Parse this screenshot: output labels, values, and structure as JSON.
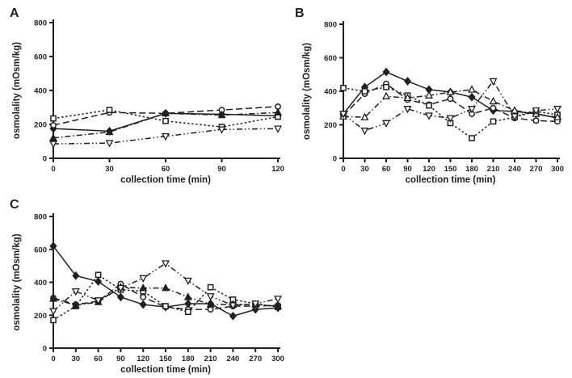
{
  "figure": {
    "background": "#ffffff",
    "ink_color": "#231f20"
  },
  "chart_data": [
    {
      "panel": "A",
      "type": "line",
      "xlabel": "collection time (min)",
      "ylabel": "osmolality (mOsm/kg)",
      "x": [
        0,
        30,
        60,
        90,
        120
      ],
      "xlim": [
        0,
        120
      ],
      "ylim": [
        0,
        800
      ],
      "yticks": [
        0,
        200,
        400,
        600,
        800
      ],
      "grid": false,
      "legend": "none",
      "series": [
        {
          "name": "filled-diamond-solid",
          "marker": "diamond",
          "fill": "black",
          "dash": "",
          "values": [
            175,
            160,
            265,
            260,
            250
          ]
        },
        {
          "name": "open-circle-dashed",
          "marker": "circle",
          "fill": "open",
          "dash": "8,4",
          "values": [
            195,
            270,
            265,
            285,
            305
          ]
        },
        {
          "name": "open-square-dotted",
          "marker": "square",
          "fill": "open",
          "dash": "2.5,2.6",
          "values": [
            235,
            285,
            220,
            185,
            245
          ]
        },
        {
          "name": "filled-triangle-dashdot",
          "marker": "triangle-up",
          "fill": "black",
          "dash": "7,3,1.5,3",
          "values": [
            120,
            155,
            265,
            255,
            270
          ]
        },
        {
          "name": "open-invtriangle-dashdotdot",
          "marker": "triangle-down",
          "fill": "open",
          "dash": "7,3,1.5,3,1.5,3",
          "values": [
            85,
            90,
            130,
            170,
            175
          ]
        }
      ]
    },
    {
      "panel": "B",
      "type": "line",
      "xlabel": "collection time (min)",
      "ylabel": "osmolality (mOsm/kg)",
      "x": [
        0,
        30,
        60,
        90,
        120,
        150,
        180,
        210,
        240,
        270,
        300
      ],
      "xlim": [
        0,
        300
      ],
      "ylim": [
        0,
        800
      ],
      "yticks": [
        0,
        200,
        400,
        600,
        800
      ],
      "grid": false,
      "legend": "none",
      "series": [
        {
          "name": "filled-diamond-solid",
          "marker": "diamond",
          "fill": "black",
          "dash": "",
          "values": [
            265,
            425,
            515,
            460,
            410,
            395,
            365,
            285,
            280,
            265,
            240
          ]
        },
        {
          "name": "open-circle-dashed",
          "marker": "circle",
          "fill": "open",
          "dash": "8,4",
          "values": [
            255,
            385,
            445,
            350,
            320,
            355,
            265,
            300,
            240,
            225,
            220
          ]
        },
        {
          "name": "open-square-dotted",
          "marker": "square",
          "fill": "open",
          "dash": "2.5,2.6",
          "values": [
            420,
            400,
            425,
            375,
            315,
            210,
            120,
            220,
            245,
            280,
            260
          ]
        },
        {
          "name": "open-triangle-dashdot",
          "marker": "triangle-up",
          "fill": "open",
          "dash": "7,3,1.5,3",
          "values": [
            250,
            245,
            370,
            360,
            375,
            395,
            410,
            340,
            285,
            265,
            245
          ]
        },
        {
          "name": "open-invtriangle-dashdotdot",
          "marker": "triangle-down",
          "fill": "open",
          "dash": "7,3,1.5,3,1.5,3",
          "values": [
            265,
            165,
            210,
            295,
            255,
            240,
            295,
            460,
            250,
            285,
            295
          ]
        }
      ]
    },
    {
      "panel": "C",
      "type": "line",
      "xlabel": "collection time (min)",
      "ylabel": "osmolality (mOsm/kg)",
      "x": [
        0,
        30,
        60,
        90,
        120,
        150,
        180,
        210,
        240,
        270,
        300
      ],
      "xlim": [
        0,
        300
      ],
      "ylim": [
        0,
        800
      ],
      "yticks": [
        0,
        200,
        400,
        600,
        800
      ],
      "grid": false,
      "legend": "none",
      "series": [
        {
          "name": "filled-diamond-solid",
          "marker": "diamond",
          "fill": "black",
          "dash": "",
          "values": [
            620,
            440,
            405,
            310,
            265,
            250,
            270,
            270,
            195,
            235,
            245
          ]
        },
        {
          "name": "open-circle-dashed",
          "marker": "circle",
          "fill": "open",
          "dash": "8,4",
          "values": [
            305,
            265,
            285,
            390,
            310,
            250,
            235,
            235,
            255,
            255,
            260
          ]
        },
        {
          "name": "open-square-dotted",
          "marker": "square",
          "fill": "open",
          "dash": "2.5,2.6",
          "values": [
            170,
            255,
            445,
            355,
            345,
            255,
            220,
            370,
            295,
            270,
            250
          ]
        },
        {
          "name": "filled-triangle-dashdot",
          "marker": "triangle-up",
          "fill": "black",
          "dash": "7,3,1.5,3",
          "values": [
            300,
            260,
            280,
            370,
            365,
            365,
            310,
            265,
            265,
            265,
            255
          ]
        },
        {
          "name": "open-invtriangle-dashdotdot",
          "marker": "triangle-down",
          "fill": "open",
          "dash": "7,3,1.5,3,1.5,3",
          "values": [
            225,
            345,
            290,
            365,
            425,
            515,
            410,
            315,
            260,
            270,
            300
          ]
        }
      ]
    }
  ]
}
